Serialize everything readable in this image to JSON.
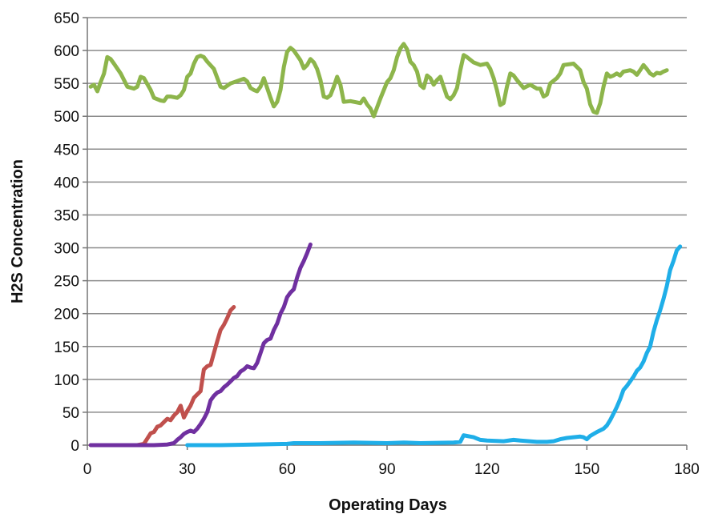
{
  "chart_data": {
    "type": "line",
    "title": "",
    "xlabel": "Operating Days",
    "ylabel": "H2S Concentration",
    "xlim": [
      0,
      180
    ],
    "ylim": [
      0,
      650
    ],
    "x_ticks": [
      0,
      30,
      60,
      90,
      120,
      150,
      180
    ],
    "y_ticks": [
      0,
      50,
      100,
      150,
      200,
      250,
      300,
      350,
      400,
      450,
      500,
      550,
      600,
      650
    ],
    "grid": "horizontal",
    "legend": "none",
    "series": [
      {
        "color": "#8db54b",
        "points": [
          [
            1,
            545
          ],
          [
            2,
            548
          ],
          [
            3,
            538
          ],
          [
            4,
            552
          ],
          [
            5,
            565
          ],
          [
            6,
            590
          ],
          [
            7,
            587
          ],
          [
            8,
            580
          ],
          [
            10,
            565
          ],
          [
            12,
            545
          ],
          [
            14,
            542
          ],
          [
            15,
            545
          ],
          [
            16,
            560
          ],
          [
            17,
            558
          ],
          [
            19,
            540
          ],
          [
            20,
            528
          ],
          [
            22,
            524
          ],
          [
            23,
            523
          ],
          [
            24,
            530
          ],
          [
            25,
            530
          ],
          [
            27,
            528
          ],
          [
            28,
            532
          ],
          [
            29,
            540
          ],
          [
            30,
            560
          ],
          [
            31,
            565
          ],
          [
            32,
            580
          ],
          [
            33,
            590
          ],
          [
            34,
            592
          ],
          [
            35,
            590
          ],
          [
            36,
            583
          ],
          [
            38,
            572
          ],
          [
            40,
            545
          ],
          [
            41,
            543
          ],
          [
            43,
            550
          ],
          [
            47,
            557
          ],
          [
            48,
            553
          ],
          [
            49,
            543
          ],
          [
            50,
            540
          ],
          [
            51,
            538
          ],
          [
            52,
            545
          ],
          [
            53,
            558
          ],
          [
            55,
            528
          ],
          [
            56,
            515
          ],
          [
            57,
            522
          ],
          [
            58,
            540
          ],
          [
            59,
            575
          ],
          [
            60,
            598
          ],
          [
            61,
            604
          ],
          [
            62,
            600
          ],
          [
            64,
            585
          ],
          [
            65,
            573
          ],
          [
            66,
            578
          ],
          [
            67,
            587
          ],
          [
            68,
            582
          ],
          [
            69,
            572
          ],
          [
            70,
            555
          ],
          [
            71,
            530
          ],
          [
            72,
            528
          ],
          [
            73,
            532
          ],
          [
            74,
            545
          ],
          [
            75,
            560
          ],
          [
            76,
            548
          ],
          [
            77,
            522
          ],
          [
            79,
            523
          ],
          [
            82,
            520
          ],
          [
            83,
            527
          ],
          [
            84,
            518
          ],
          [
            85,
            512
          ],
          [
            86,
            500
          ],
          [
            88,
            527
          ],
          [
            90,
            552
          ],
          [
            91,
            558
          ],
          [
            92,
            570
          ],
          [
            93,
            590
          ],
          [
            94,
            603
          ],
          [
            95,
            610
          ],
          [
            96,
            602
          ],
          [
            97,
            583
          ],
          [
            98,
            578
          ],
          [
            99,
            568
          ],
          [
            100,
            547
          ],
          [
            101,
            543
          ],
          [
            102,
            562
          ],
          [
            103,
            558
          ],
          [
            104,
            548
          ],
          [
            105,
            555
          ],
          [
            106,
            560
          ],
          [
            107,
            545
          ],
          [
            108,
            530
          ],
          [
            109,
            526
          ],
          [
            110,
            532
          ],
          [
            111,
            543
          ],
          [
            112,
            570
          ],
          [
            113,
            593
          ],
          [
            114,
            590
          ],
          [
            116,
            582
          ],
          [
            118,
            578
          ],
          [
            120,
            580
          ],
          [
            121,
            572
          ],
          [
            122,
            558
          ],
          [
            123,
            540
          ],
          [
            124,
            517
          ],
          [
            125,
            520
          ],
          [
            126,
            545
          ],
          [
            127,
            565
          ],
          [
            128,
            562
          ],
          [
            129,
            555
          ],
          [
            131,
            543
          ],
          [
            133,
            548
          ],
          [
            135,
            542
          ],
          [
            136,
            542
          ],
          [
            137,
            530
          ],
          [
            138,
            533
          ],
          [
            139,
            550
          ],
          [
            141,
            558
          ],
          [
            142,
            565
          ],
          [
            143,
            578
          ],
          [
            146,
            580
          ],
          [
            147,
            575
          ],
          [
            148,
            570
          ],
          [
            149,
            552
          ],
          [
            150,
            542
          ],
          [
            151,
            518
          ],
          [
            152,
            507
          ],
          [
            153,
            505
          ],
          [
            154,
            520
          ],
          [
            155,
            545
          ],
          [
            156,
            565
          ],
          [
            157,
            560
          ],
          [
            158,
            562
          ],
          [
            159,
            565
          ],
          [
            160,
            562
          ],
          [
            161,
            568
          ],
          [
            163,
            570
          ],
          [
            164,
            568
          ],
          [
            165,
            563
          ],
          [
            166,
            570
          ],
          [
            167,
            578
          ],
          [
            168,
            572
          ],
          [
            169,
            565
          ],
          [
            170,
            562
          ],
          [
            171,
            566
          ],
          [
            172,
            565
          ],
          [
            173,
            568
          ],
          [
            174,
            570
          ]
        ]
      },
      {
        "color": "#c0504d",
        "points": [
          [
            1,
            0
          ],
          [
            5,
            0
          ],
          [
            10,
            0
          ],
          [
            15,
            0
          ],
          [
            17,
            2
          ],
          [
            18,
            10
          ],
          [
            19,
            18
          ],
          [
            20,
            20
          ],
          [
            21,
            28
          ],
          [
            22,
            30
          ],
          [
            23,
            35
          ],
          [
            24,
            40
          ],
          [
            25,
            38
          ],
          [
            26,
            45
          ],
          [
            27,
            50
          ],
          [
            28,
            60
          ],
          [
            29,
            42
          ],
          [
            30,
            52
          ],
          [
            31,
            60
          ],
          [
            32,
            72
          ],
          [
            33,
            77
          ],
          [
            34,
            82
          ],
          [
            35,
            115
          ],
          [
            36,
            120
          ],
          [
            37,
            122
          ],
          [
            38,
            140
          ],
          [
            39,
            158
          ],
          [
            40,
            175
          ],
          [
            41,
            183
          ],
          [
            42,
            193
          ],
          [
            43,
            205
          ],
          [
            44,
            210
          ]
        ]
      },
      {
        "color": "#7030a0",
        "points": [
          [
            1,
            0
          ],
          [
            10,
            0
          ],
          [
            20,
            0
          ],
          [
            24,
            1
          ],
          [
            26,
            3
          ],
          [
            27,
            8
          ],
          [
            28,
            12
          ],
          [
            29,
            17
          ],
          [
            30,
            20
          ],
          [
            31,
            22
          ],
          [
            32,
            20
          ],
          [
            33,
            25
          ],
          [
            34,
            32
          ],
          [
            35,
            40
          ],
          [
            36,
            50
          ],
          [
            37,
            68
          ],
          [
            38,
            75
          ],
          [
            39,
            80
          ],
          [
            40,
            82
          ],
          [
            41,
            88
          ],
          [
            42,
            92
          ],
          [
            43,
            97
          ],
          [
            44,
            102
          ],
          [
            45,
            105
          ],
          [
            46,
            112
          ],
          [
            47,
            115
          ],
          [
            48,
            120
          ],
          [
            49,
            118
          ],
          [
            50,
            117
          ],
          [
            51,
            125
          ],
          [
            52,
            140
          ],
          [
            53,
            155
          ],
          [
            54,
            160
          ],
          [
            55,
            162
          ],
          [
            56,
            175
          ],
          [
            57,
            185
          ],
          [
            58,
            200
          ],
          [
            59,
            210
          ],
          [
            60,
            225
          ],
          [
            61,
            232
          ],
          [
            62,
            237
          ],
          [
            63,
            255
          ],
          [
            64,
            270
          ],
          [
            65,
            280
          ],
          [
            66,
            292
          ],
          [
            67,
            305
          ]
        ]
      },
      {
        "color": "#1faee8",
        "points": [
          [
            30,
            0
          ],
          [
            40,
            0
          ],
          [
            50,
            1
          ],
          [
            60,
            2
          ],
          [
            62,
            3
          ],
          [
            70,
            3
          ],
          [
            80,
            4
          ],
          [
            90,
            3
          ],
          [
            95,
            4
          ],
          [
            100,
            3
          ],
          [
            110,
            4
          ],
          [
            112,
            5
          ],
          [
            113,
            15
          ],
          [
            114,
            14
          ],
          [
            115,
            13
          ],
          [
            116,
            12
          ],
          [
            117,
            10
          ],
          [
            118,
            8
          ],
          [
            120,
            7
          ],
          [
            125,
            6
          ],
          [
            128,
            8
          ],
          [
            130,
            7
          ],
          [
            135,
            5
          ],
          [
            138,
            5
          ],
          [
            140,
            6
          ],
          [
            142,
            9
          ],
          [
            144,
            11
          ],
          [
            146,
            12
          ],
          [
            148,
            13
          ],
          [
            149,
            12
          ],
          [
            150,
            9
          ],
          [
            151,
            14
          ],
          [
            153,
            20
          ],
          [
            155,
            25
          ],
          [
            156,
            30
          ],
          [
            157,
            38
          ],
          [
            158,
            48
          ],
          [
            159,
            58
          ],
          [
            160,
            70
          ],
          [
            161,
            84
          ],
          [
            162,
            90
          ],
          [
            163,
            97
          ],
          [
            164,
            104
          ],
          [
            165,
            113
          ],
          [
            166,
            118
          ],
          [
            167,
            127
          ],
          [
            168,
            140
          ],
          [
            169,
            150
          ],
          [
            170,
            172
          ],
          [
            171,
            190
          ],
          [
            172,
            205
          ],
          [
            173,
            222
          ],
          [
            174,
            242
          ],
          [
            175,
            266
          ],
          [
            176,
            280
          ],
          [
            177,
            296
          ],
          [
            178,
            302
          ]
        ]
      }
    ]
  }
}
